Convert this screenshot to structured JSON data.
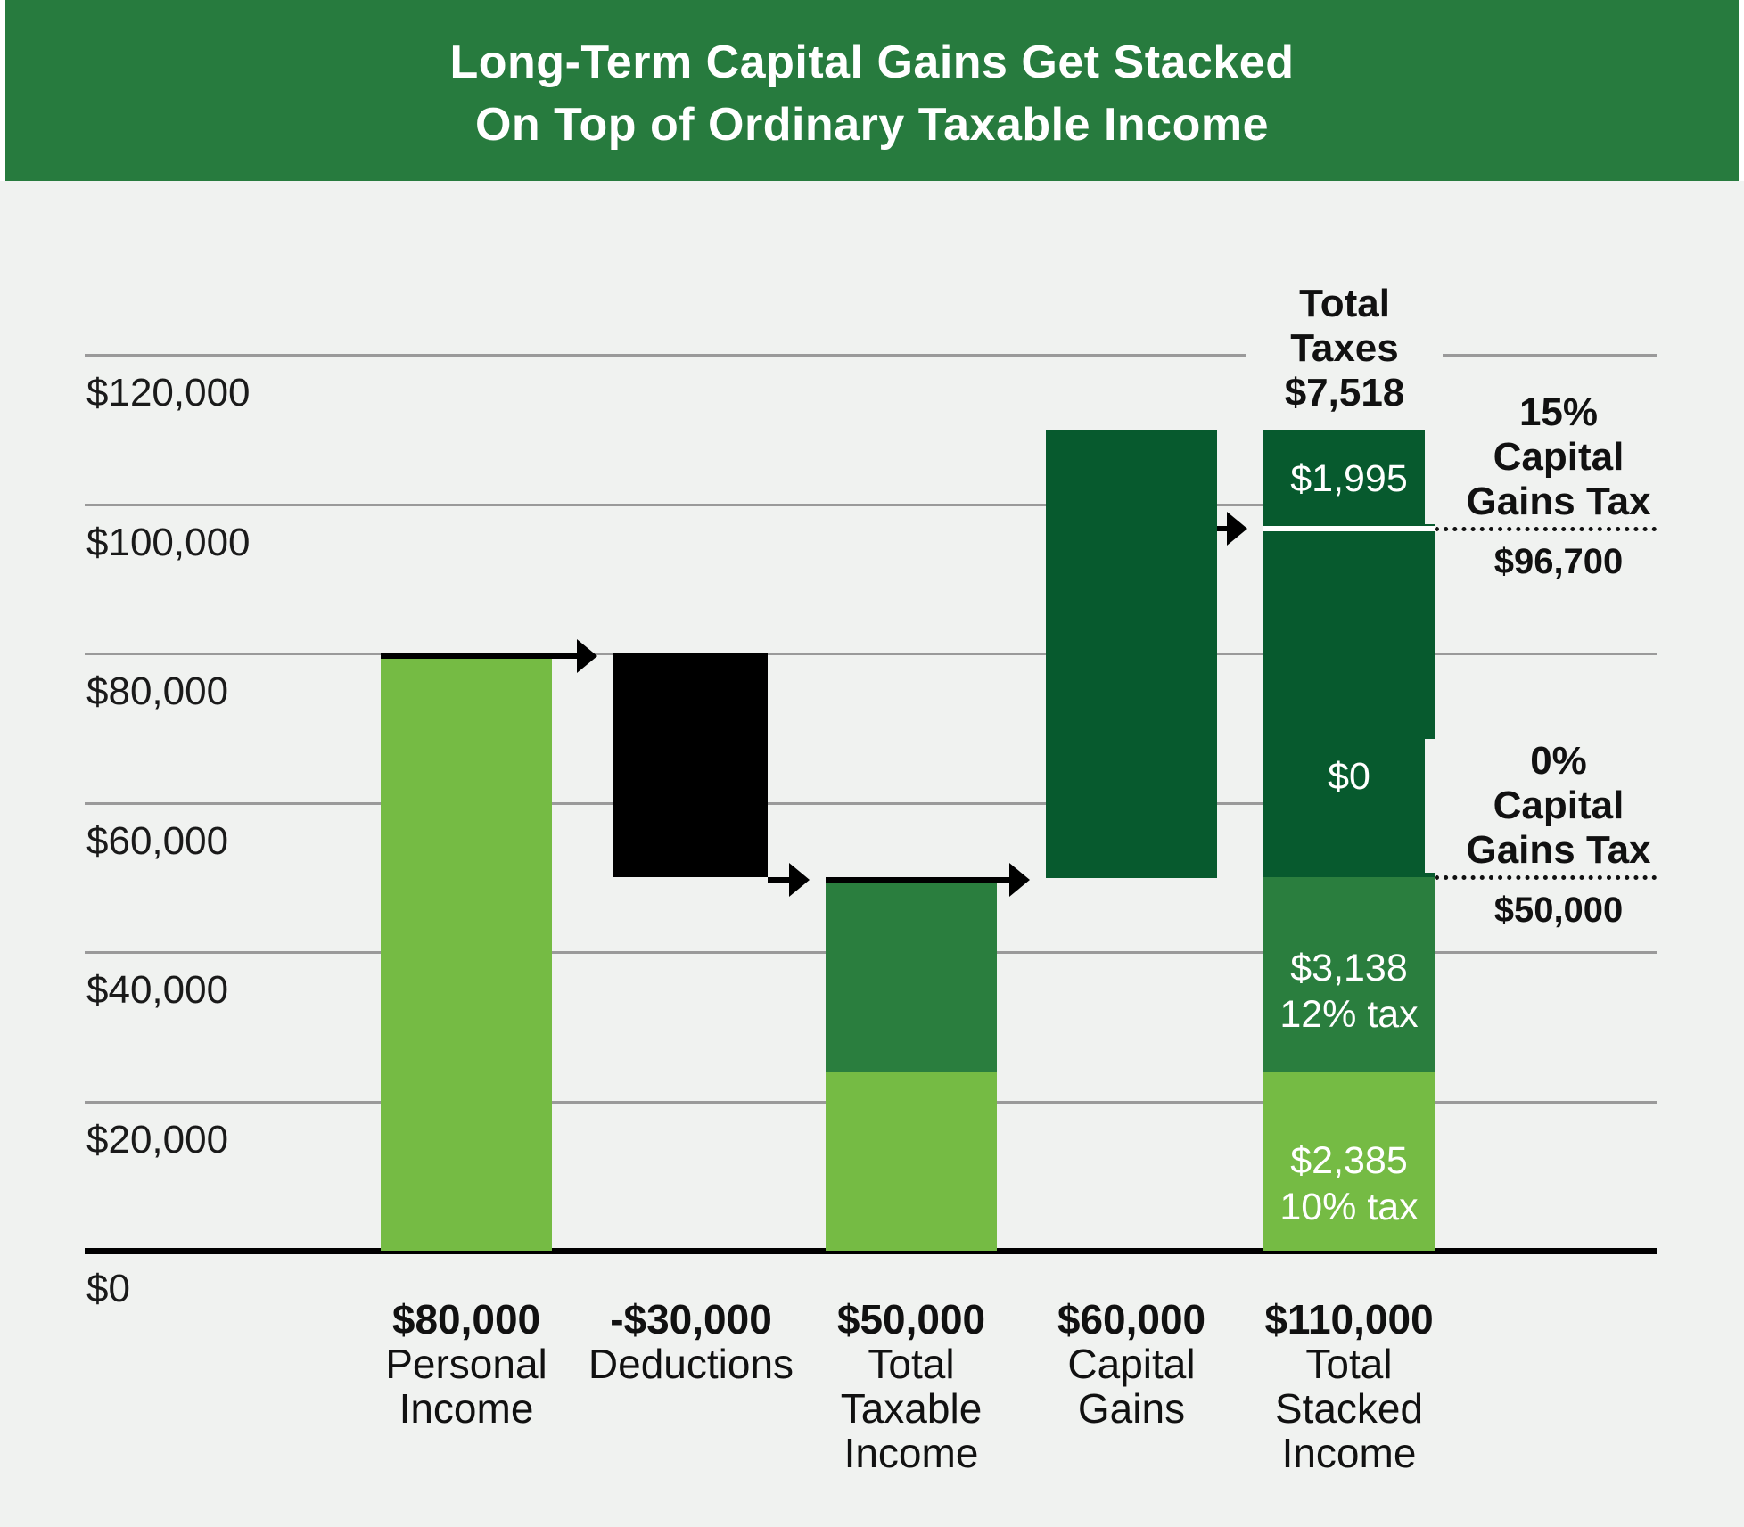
{
  "header": {
    "title_line1": "Long-Term Capital Gains Get Stacked",
    "title_line2": "On Top of Ordinary Taxable Income",
    "bg_color": "#277B3E",
    "text_color": "#FFFFFF"
  },
  "chart_data": {
    "type": "bar",
    "subtype": "waterfall-stacked",
    "title": "Long-Term Capital Gains Get Stacked On Top of Ordinary Taxable Income",
    "xlabel": "",
    "ylabel": "",
    "ylim": [
      0,
      130000
    ],
    "grid": true,
    "background_color": "#F0F2F0",
    "gridline_color": "#9A9A9A",
    "axis_color": "#000000",
    "palette": {
      "light_green": "#75BB44",
      "medium_green": "#2A7E3E",
      "dark_green": "#075A2E",
      "black": "#000000",
      "white": "#FFFFFF"
    },
    "y_ticks": [
      {
        "value": 120000,
        "label": "$120,000"
      },
      {
        "value": 100000,
        "label": "$100,000"
      },
      {
        "value": 80000,
        "label": "$80,000"
      },
      {
        "value": 60000,
        "label": "$60,000"
      },
      {
        "value": 40000,
        "label": "$40,000"
      },
      {
        "value": 20000,
        "label": "$20,000"
      },
      {
        "value": 0,
        "label": "$0"
      }
    ],
    "bars": [
      {
        "id": "personal-income",
        "value_label": "$80,000",
        "name_lines": [
          "Personal",
          "Income"
        ],
        "top_line_level": 80000,
        "segments": [
          {
            "from": 0,
            "to": 80000,
            "color": "light_green"
          }
        ]
      },
      {
        "id": "deductions",
        "value_label": "-$30,000",
        "name_lines": [
          "Deductions"
        ],
        "segments": [
          {
            "from": 50000,
            "to": 80000,
            "color": "black"
          }
        ]
      },
      {
        "id": "total-taxable-income",
        "value_label": "$50,000",
        "name_lines": [
          "Total",
          "Taxable",
          "Income"
        ],
        "top_line_level": 50000,
        "segments": [
          {
            "from": 0,
            "to": 23850,
            "color": "light_green"
          },
          {
            "from": 23850,
            "to": 50000,
            "color": "medium_green"
          }
        ]
      },
      {
        "id": "capital-gains",
        "value_label": "$60,000",
        "name_lines": [
          "Capital",
          "Gains"
        ],
        "segments": [
          {
            "from": 50000,
            "to": 110000,
            "color": "dark_green"
          }
        ]
      },
      {
        "id": "total-stacked-income",
        "value_label": "$110,000",
        "name_lines": [
          "Total",
          "Stacked",
          "Income"
        ],
        "segments": [
          {
            "from": 0,
            "to": 23850,
            "color": "light_green",
            "text_lines": [
              "$2,385",
              "10% tax"
            ],
            "text_dy": 25
          },
          {
            "from": 23850,
            "to": 50000,
            "color": "medium_green",
            "text_lines": [
              "$3,138",
              "12% tax"
            ],
            "text_dy": 18
          },
          {
            "from": 50000,
            "to": 96700,
            "color": "dark_green",
            "text_lines": [
              "$0"
            ],
            "text_dy": 82
          },
          {
            "from": 96700,
            "to": 110000,
            "color": "dark_green",
            "text_lines": [
              "$1,995"
            ],
            "text_dy": 0,
            "separator_below": true
          }
        ]
      }
    ],
    "arrows": [
      {
        "from": "personal-income",
        "to": "deductions",
        "level": 80000
      },
      {
        "from": "deductions",
        "to": "total-taxable-income",
        "level": 50000
      },
      {
        "from": "total-taxable-income",
        "to": "capital-gains",
        "level": 50000
      },
      {
        "from": "capital-gains",
        "to": "total-stacked-income",
        "level": 96700
      }
    ],
    "annotations": {
      "total_taxes": {
        "lines": [
          "Total",
          "Taxes",
          "$7,518"
        ]
      },
      "thresholds": [
        {
          "lines": [
            "15%",
            "Capital",
            "Gains Tax"
          ],
          "value": 96700,
          "value_label": "$96,700"
        },
        {
          "lines": [
            "0%",
            "Capital",
            "Gains Tax"
          ],
          "value": 50000,
          "value_label": "$50,000"
        }
      ]
    }
  }
}
